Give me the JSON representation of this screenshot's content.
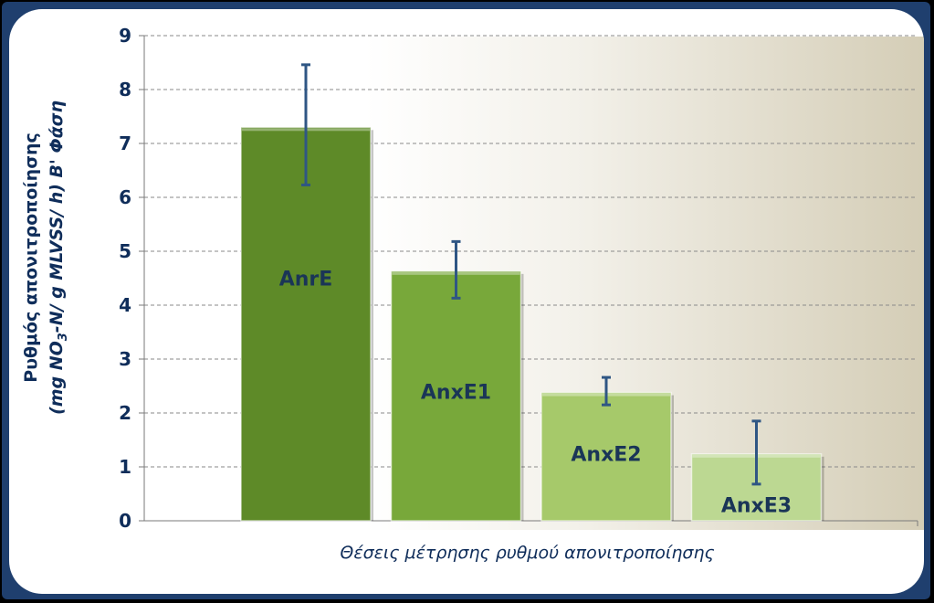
{
  "chart_data": {
    "type": "bar",
    "categories": [
      "AnrE",
      "AnxE1",
      "AnxE2",
      "AnxE3"
    ],
    "values": [
      7.3,
      4.63,
      2.38,
      1.24
    ],
    "error_low": [
      6.23,
      4.13,
      2.15,
      0.68
    ],
    "error_high": [
      8.46,
      5.18,
      2.66,
      1.85
    ],
    "bar_colors": [
      "#5e8a28",
      "#78a83a",
      "#a6c96a",
      "#bcd892"
    ],
    "ylim": [
      0,
      9
    ],
    "yticks": [
      "0",
      "1",
      "2",
      "3",
      "4",
      "5",
      "6",
      "7",
      "8",
      "9"
    ],
    "xlabel": "Θέσεις μέτρησης ρυθμού απονιτροποίησης",
    "ylabel_line1": "Ρυθμός απονιτροποίησης",
    "ylabel_line2_prefix": "(mg NO",
    "ylabel_line2_sub": "3",
    "ylabel_line2_suffix": "-N/ g MLVSS/ h) Β' Φάση",
    "grid": true,
    "error_bar_color": "#2f5684"
  }
}
